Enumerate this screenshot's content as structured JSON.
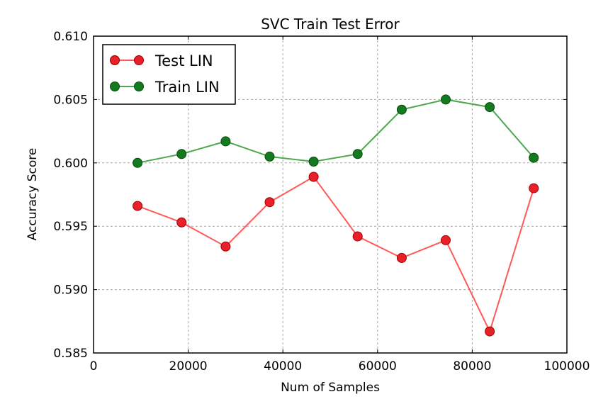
{
  "chart_data": {
    "type": "line",
    "title": "SVC Train Test Error",
    "xlabel": "Num of Samples",
    "ylabel": "Accuracy Score",
    "xlim": [
      0,
      100000
    ],
    "ylim": [
      0.585,
      0.61
    ],
    "x_ticks": [
      0,
      20000,
      40000,
      60000,
      80000,
      100000
    ],
    "x_tick_labels": [
      "0",
      "20000",
      "40000",
      "60000",
      "80000",
      "100000"
    ],
    "y_ticks": [
      0.585,
      0.59,
      0.595,
      0.6,
      0.605,
      0.61
    ],
    "y_tick_labels": [
      "0.585",
      "0.590",
      "0.595",
      "0.600",
      "0.605",
      "0.610"
    ],
    "grid": true,
    "legend_position": "top-left",
    "x": [
      9300,
      18600,
      27900,
      37200,
      46500,
      55800,
      65100,
      74400,
      83700,
      93000
    ],
    "series": [
      {
        "name": "Test LIN",
        "color": "#e8202a",
        "line_color": "#ff5a5a",
        "values": [
          0.5966,
          0.5953,
          0.5934,
          0.5969,
          0.5989,
          0.5942,
          0.5925,
          0.5939,
          0.5867,
          0.598
        ]
      },
      {
        "name": "Train LIN",
        "color": "#137a1f",
        "line_color": "#4da84d",
        "values": [
          0.6,
          0.6007,
          0.6017,
          0.6005,
          0.6001,
          0.6007,
          0.6042,
          0.605,
          0.6044,
          0.6004
        ]
      }
    ]
  }
}
